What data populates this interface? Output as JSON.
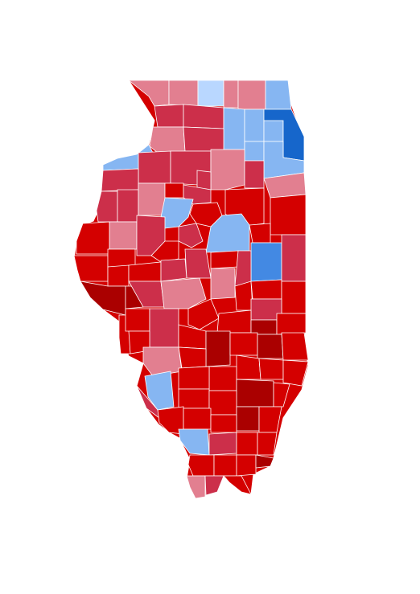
{
  "map": {
    "region": "Illinois",
    "legend_categories": {
      "rep_light": "#e27f90",
      "rep_medium": "#cc2f4a",
      "rep_strong": "#d40000",
      "rep_very_strong": "#aa0000",
      "dem_very_light": "#b9d7ff",
      "dem_light": "#86b6f2",
      "dem_medium": "#4389e3",
      "dem_strong": "#1666cb"
    }
  }
}
